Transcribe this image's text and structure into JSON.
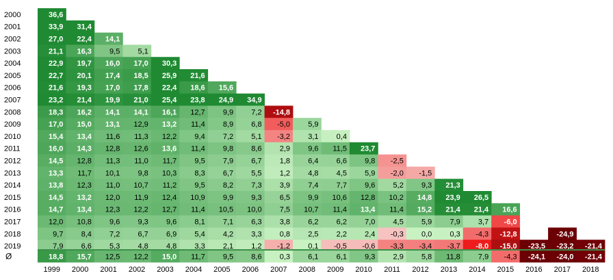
{
  "chart_data": {
    "type": "heatmap",
    "title": "",
    "xlabel": "",
    "ylabel": "",
    "columns": [
      "1999",
      "2000",
      "2001",
      "2002",
      "2003",
      "2004",
      "2005",
      "2006",
      "2007",
      "2008",
      "2009",
      "2010",
      "2011",
      "2012",
      "2013",
      "2014",
      "2015",
      "2016",
      "2017",
      "2018"
    ],
    "rows": [
      "2000",
      "2001",
      "2002",
      "2003",
      "2004",
      "2005",
      "2006",
      "2007",
      "2008",
      "2009",
      "2010",
      "2011",
      "2012",
      "2013",
      "2014",
      "2015",
      "2016",
      "2017",
      "2018",
      "2019"
    ],
    "values": [
      [
        "36,6"
      ],
      [
        "33,9",
        "31,4"
      ],
      [
        "27,0",
        "22,4",
        "14,1"
      ],
      [
        "21,1",
        "16,3",
        "9,5",
        "5,1"
      ],
      [
        "22,9",
        "19,7",
        "16,0",
        "17,0",
        "30,3"
      ],
      [
        "22,7",
        "20,1",
        "17,4",
        "18,5",
        "25,9",
        "21,6"
      ],
      [
        "21,6",
        "19,3",
        "17,0",
        "17,8",
        "22,4",
        "18,6",
        "15,6"
      ],
      [
        "23,2",
        "21,4",
        "19,9",
        "21,0",
        "25,4",
        "23,8",
        "24,9",
        "34,9"
      ],
      [
        "18,3",
        "16,2",
        "14,1",
        "14,1",
        "16,1",
        "12,7",
        "9,9",
        "7,2",
        "-14,8"
      ],
      [
        "17,0",
        "15,0",
        "13,1",
        "12,9",
        "13,2",
        "11,4",
        "8,9",
        "6,8",
        "-5,0",
        "5,9"
      ],
      [
        "15,4",
        "13,4",
        "11,6",
        "11,3",
        "12,2",
        "9,4",
        "7,2",
        "5,1",
        "-3,2",
        "3,1",
        "0,4"
      ],
      [
        "16,0",
        "14,3",
        "12,8",
        "12,6",
        "13,6",
        "11,4",
        "9,8",
        "8,6",
        "2,9",
        "9,6",
        "11,5",
        "23,7"
      ],
      [
        "14,5",
        "12,8",
        "11,3",
        "11,0",
        "11,7",
        "9,5",
        "7,9",
        "6,7",
        "1,8",
        "6,4",
        "6,6",
        "9,8",
        "-2,5"
      ],
      [
        "13,3",
        "11,7",
        "10,1",
        "9,8",
        "10,3",
        "8,3",
        "6,7",
        "5,5",
        "1,2",
        "4,8",
        "4,5",
        "5,9",
        "-2,0",
        "-1,5"
      ],
      [
        "13,8",
        "12,3",
        "11,0",
        "10,7",
        "11,2",
        "9,5",
        "8,2",
        "7,3",
        "3,9",
        "7,4",
        "7,7",
        "9,6",
        "5,2",
        "9,3",
        "21,3"
      ],
      [
        "14,5",
        "13,2",
        "12,0",
        "11,9",
        "12,4",
        "10,9",
        "9,9",
        "9,3",
        "6,5",
        "9,9",
        "10,6",
        "12,8",
        "10,2",
        "14,8",
        "23,9",
        "26,5"
      ],
      [
        "14,7",
        "13,4",
        "12,3",
        "12,2",
        "12,7",
        "11,4",
        "10,5",
        "10,0",
        "7,5",
        "10,7",
        "11,4",
        "13,4",
        "11,4",
        "15,2",
        "21,4",
        "21,4",
        "16,6"
      ],
      [
        "12,0",
        "10,8",
        "9,6",
        "9,3",
        "9,6",
        "8,1",
        "7,1",
        "6,3",
        "3,8",
        "6,2",
        "6,2",
        "7,0",
        "4,5",
        "5,9",
        "7,9",
        "3,7",
        "-6,0"
      ],
      [
        "9,7",
        "8,4",
        "7,2",
        "6,7",
        "6,9",
        "5,4",
        "4,2",
        "3,3",
        "0,8",
        "2,5",
        "2,2",
        "2,4",
        "-0,3",
        "0,0",
        "0,3",
        "-4,3",
        "-12,8",
        "",
        "-24,9"
      ],
      [
        "7,9",
        "6,6",
        "5,3",
        "4,8",
        "4,8",
        "3,3",
        "2,1",
        "1,2",
        "-1,2",
        "0,1",
        "-0,5",
        "-0,6",
        "-3,3",
        "-3,4",
        "-3,7",
        "-8,0",
        "-15,0",
        "-23,5",
        "-23,2",
        "-21,4"
      ]
    ],
    "average_row_label": "Ø",
    "average_row": [
      "18,8",
      "15,7",
      "12,5",
      "12,2",
      "15,0",
      "11,7",
      "9,5",
      "8,6",
      "0,3",
      "6,1",
      "6,1",
      "9,3",
      "2,9",
      "5,8",
      "11,8",
      "7,9",
      "-4,3",
      "-24,1",
      "-24,0",
      "-21,4"
    ],
    "colors": {
      "positive_darkest": "#1f8a32",
      "positive_lightest": "#c9f2c3",
      "negative_lightest": "#f6c9c6",
      "negative_red": "#ee1c1c",
      "negative_darkest": "#6b0005",
      "light_text": "#ffffff",
      "dark_text": "#000000",
      "avg_separator": "#3d8f4a"
    }
  }
}
